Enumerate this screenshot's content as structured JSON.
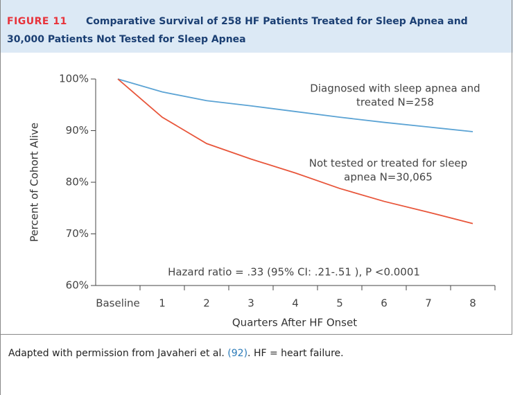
{
  "header": {
    "label": "FIGURE 11",
    "title_lines": [
      "Comparative Survival of 258 HF Patients Treated for Sleep Apnea and",
      "30,000 Patients Not Tested for Sleep Apnea"
    ]
  },
  "chart_data": {
    "type": "line",
    "categories": [
      "Baseline",
      "1",
      "2",
      "3",
      "4",
      "5",
      "6",
      "7",
      "8"
    ],
    "series": [
      {
        "color": "#5ba3d4",
        "values": [
          100,
          97.5,
          95.8,
          94.8,
          93.7,
          92.6,
          91.6,
          90.7,
          89.8
        ]
      },
      {
        "color": "#e8553a",
        "values": [
          100,
          92.6,
          87.5,
          84.5,
          81.8,
          78.8,
          76.3,
          74.2,
          72.0
        ]
      }
    ],
    "ylim": [
      60,
      100
    ],
    "yticks": [
      {
        "value": 60,
        "label": "60%"
      },
      {
        "value": 70,
        "label": "70%"
      },
      {
        "value": 80,
        "label": "80%"
      },
      {
        "value": 90,
        "label": "90%"
      },
      {
        "value": 100,
        "label": "100%"
      }
    ],
    "ylabel": "Percent of Cohort Alive",
    "xlabel": "Quarters After HF Onset",
    "annotations": [
      {
        "lines": [
          "Diagnosed with sleep apnea and",
          "treated N=258"
        ]
      },
      {
        "lines": [
          "Not tested or treated for sleep",
          "apnea N=30,065"
        ]
      },
      {
        "lines": [
          "Hazard ratio = .33 (95% CI: .21-.51 ), P <0.0001"
        ]
      }
    ]
  },
  "caption": {
    "text_before": "Adapted with permission from Javaheri et al. ",
    "reference": "(92)",
    "text_after": ". HF = heart failure."
  }
}
